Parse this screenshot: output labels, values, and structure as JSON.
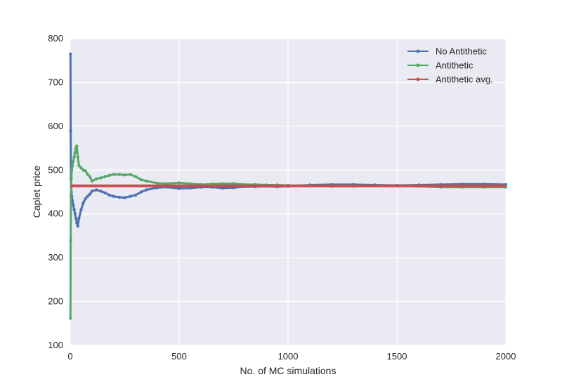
{
  "chart_data": {
    "type": "line",
    "title": "",
    "xlabel": "No. of MC simulations",
    "ylabel": "Caplet price",
    "xlim": [
      0,
      2000
    ],
    "ylim": [
      100,
      800
    ],
    "xticks": [
      "0",
      "500",
      "1000",
      "1500",
      "2000"
    ],
    "yticks": [
      "100",
      "200",
      "300",
      "400",
      "500",
      "600",
      "700",
      "800"
    ],
    "grid": true,
    "legend_position": "top-right",
    "series": [
      {
        "name": "No Antithetic",
        "color": "#4c72b0",
        "x": [
          1,
          2,
          3,
          5,
          7,
          10,
          14,
          18,
          22,
          26,
          30,
          35,
          40,
          50,
          60,
          70,
          80,
          90,
          100,
          120,
          140,
          160,
          180,
          200,
          225,
          250,
          275,
          300,
          325,
          350,
          400,
          450,
          500,
          550,
          600,
          650,
          700,
          750,
          800,
          850,
          900,
          950,
          1000,
          1100,
          1200,
          1300,
          1400,
          1500,
          1600,
          1700,
          1800,
          1900,
          2000
        ],
        "y": [
          765,
          590,
          480,
          450,
          440,
          430,
          420,
          410,
          400,
          390,
          380,
          372,
          390,
          410,
          425,
          435,
          440,
          445,
          452,
          455,
          452,
          448,
          443,
          440,
          438,
          437,
          440,
          443,
          450,
          455,
          460,
          461,
          458,
          459,
          461,
          461,
          459,
          460,
          462,
          462,
          463,
          462,
          463,
          466,
          467,
          467,
          466,
          465,
          466,
          467,
          468,
          468,
          467
        ]
      },
      {
        "name": "Antithetic",
        "color": "#55a868",
        "x": [
          1,
          2,
          3,
          5,
          7,
          10,
          14,
          18,
          22,
          26,
          30,
          35,
          40,
          50,
          60,
          70,
          80,
          90,
          100,
          120,
          140,
          160,
          180,
          200,
          225,
          250,
          275,
          300,
          325,
          350,
          400,
          450,
          500,
          550,
          600,
          650,
          700,
          750,
          800,
          850,
          900,
          950,
          1000,
          1100,
          1200,
          1300,
          1400,
          1500,
          1600,
          1700,
          1800,
          1900,
          2000
        ],
        "y": [
          162,
          340,
          440,
          480,
          500,
          510,
          520,
          530,
          540,
          550,
          555,
          530,
          510,
          505,
          500,
          498,
          490,
          485,
          475,
          480,
          482,
          485,
          488,
          490,
          490,
          489,
          490,
          485,
          478,
          475,
          470,
          469,
          471,
          469,
          467,
          468,
          469,
          469,
          467,
          467,
          466,
          466,
          465,
          464,
          463,
          463,
          464,
          464,
          463,
          461,
          461,
          461,
          461
        ]
      },
      {
        "name": "Antithetic avg.",
        "color": "#c44e52",
        "x": [
          0,
          2000
        ],
        "y": [
          464,
          464
        ]
      }
    ]
  }
}
